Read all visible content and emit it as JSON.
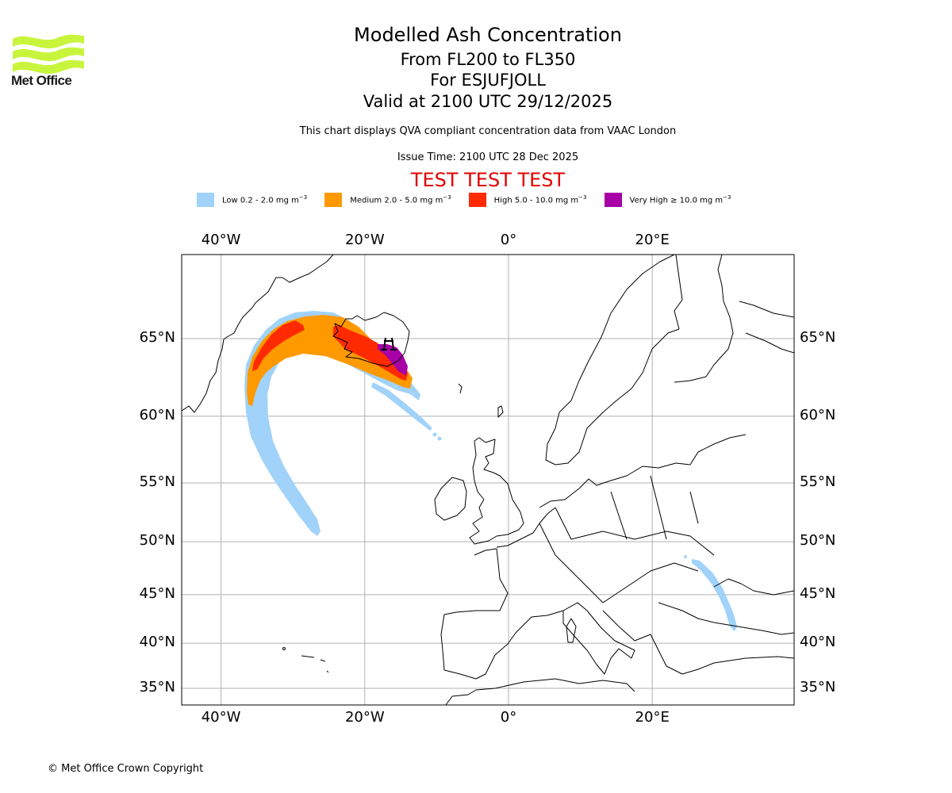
{
  "branding": {
    "logo_icon": "met-office-waves-logo",
    "logo_text": "Met Office",
    "logo_color": "#c8f53c"
  },
  "header": {
    "title": "Modelled Ash Concentration",
    "flight_levels": "From FL200 to FL350",
    "volcano": "For ESJUFJOLL",
    "valid_time": "Valid at 2100 UTC 29/12/2025",
    "description": "This chart displays QVA compliant concentration data from VAAC London",
    "issue_time": "Issue Time: 2100 UTC 28 Dec 2025",
    "test_banner": "TEST TEST TEST",
    "test_banner_color": "#e00000"
  },
  "legend": [
    {
      "level": "Low",
      "range": "0.2 - 2.0 mg m",
      "unit_exp": "−3",
      "color": "#a0d2fa"
    },
    {
      "level": "Medium",
      "range": "2.0 - 5.0 mg m",
      "unit_exp": "−3",
      "color": "#ff9900"
    },
    {
      "level": "High",
      "range": "5.0 - 10.0 mg m",
      "unit_exp": "−3",
      "color": "#ff2a00"
    },
    {
      "level": "Very High",
      "range": "≥  10.0 mg m",
      "unit_exp": "−3",
      "color": "#a600a6"
    }
  ],
  "chart_data": {
    "type": "map",
    "title": "Modelled Ash Concentration",
    "projection": "Mercator",
    "lon_range_deg": [
      -45,
      40
    ],
    "lat_range_deg": [
      33,
      73
    ],
    "grid": true,
    "lon_ticks": [
      {
        "value": -40,
        "label": "40°W"
      },
      {
        "value": -20,
        "label": "20°W"
      },
      {
        "value": 0,
        "label": "0°"
      },
      {
        "value": 20,
        "label": "20°E"
      }
    ],
    "lat_ticks": [
      {
        "value": 65,
        "label": "65°N"
      },
      {
        "value": 60,
        "label": "60°N"
      },
      {
        "value": 55,
        "label": "55°N"
      },
      {
        "value": 50,
        "label": "50°N"
      },
      {
        "value": 45,
        "label": "45°N"
      },
      {
        "value": 40,
        "label": "40°N"
      },
      {
        "value": 35,
        "label": "35°N"
      }
    ],
    "volcano_marker": {
      "name": "ESJUFJOLL",
      "lon": -16.6,
      "lat": 64.3
    },
    "ash_plume_regions": [
      {
        "level": "Low",
        "description": "Main arc from SE Iceland west over Denmark Strait then south to ~51°N 26°W; thin streak SE toward 57.5°N 9°W; patch over Moldova/Black Sea coast ~48°N 27°E to 41°N 32°E"
      },
      {
        "level": "Medium",
        "description": "Arc from SE Iceland west to ~35°W 61°N"
      },
      {
        "level": "High",
        "description": "Core along Iceland and west to ~33°W 63°N"
      },
      {
        "level": "Very High",
        "description": "Over SE Iceland near volcano, ~63.5-65°N, 14-17°W"
      }
    ]
  },
  "footer": {
    "copyright": "© Met Office Crown Copyright"
  }
}
